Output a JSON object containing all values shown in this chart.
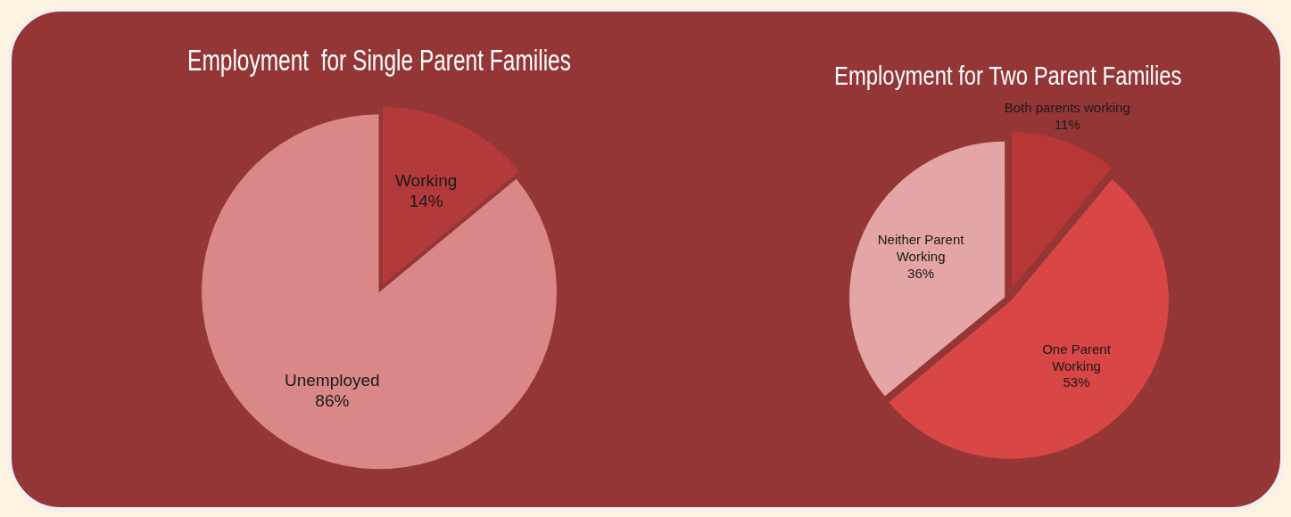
{
  "chart_data": [
    {
      "type": "pie",
      "title": "Employment  for Single Parent Families",
      "categories": [
        "Working",
        "Unemployed"
      ],
      "values": [
        14,
        86
      ],
      "colors": [
        "#b23a3a",
        "#d98787"
      ],
      "value_labels": [
        "14%",
        "86%"
      ],
      "legend": false
    },
    {
      "type": "pie",
      "title": "Employment for Two Parent Families",
      "categories": [
        "Both parents working",
        "One Parent Working",
        "Neither Parent Working"
      ],
      "values": [
        11,
        53,
        36
      ],
      "colors": [
        "#b73636",
        "#d94646",
        "#e3a5a5"
      ],
      "value_labels": [
        "11%",
        "53%",
        "36%"
      ],
      "legend": false
    }
  ]
}
